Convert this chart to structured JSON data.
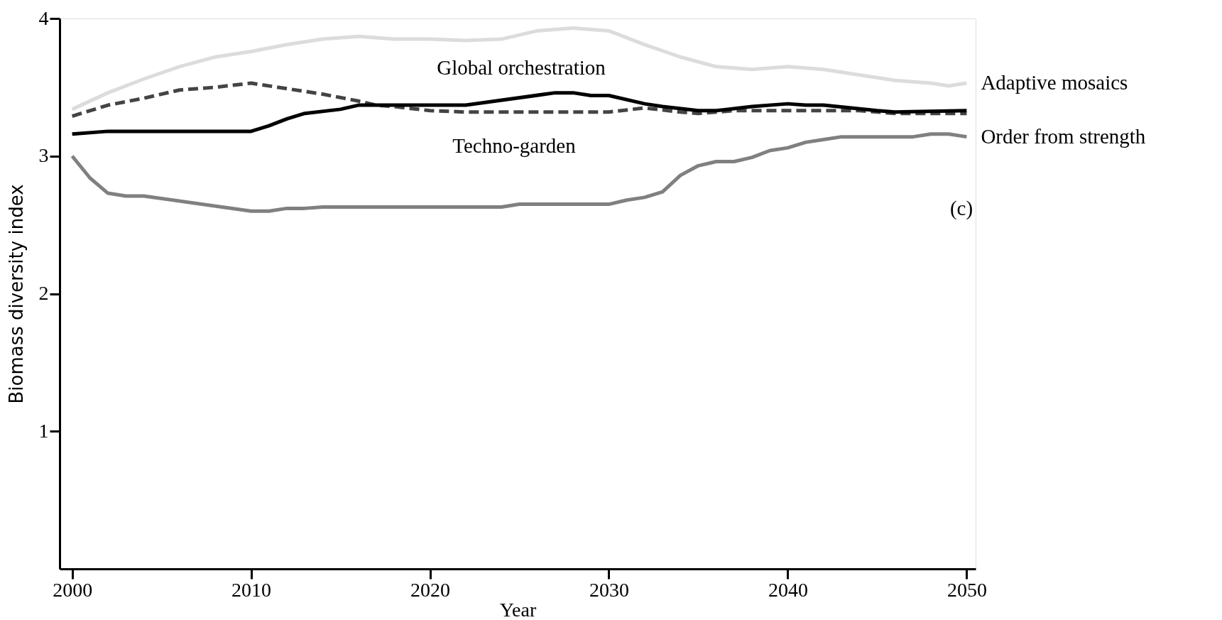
{
  "chart_data": {
    "type": "line",
    "xlabel": "Year",
    "ylabel": "Biomass diversity index",
    "xlim": [
      1999.3,
      2050.5
    ],
    "xticks": [
      2000,
      2010,
      2020,
      2030,
      2040,
      2050
    ],
    "ylim": [
      0,
      4
    ],
    "yticks": [
      1,
      2,
      3,
      4
    ],
    "grid": false,
    "line_style": "solid",
    "marker": "none",
    "series": [
      {
        "name": "Adaptive mosaics",
        "color": "#dcdcdc",
        "x": [
          2000,
          2002,
          2004,
          2006,
          2008,
          2010,
          2012,
          2014,
          2016,
          2018,
          2020,
          2022,
          2024,
          2026,
          2028,
          2030,
          2032,
          2034,
          2036,
          2038,
          2040,
          2042,
          2044,
          2046,
          2048,
          2049,
          2050
        ],
        "values": [
          3.34,
          3.46,
          3.56,
          3.65,
          3.72,
          3.76,
          3.81,
          3.85,
          3.87,
          3.85,
          3.85,
          3.84,
          3.85,
          3.91,
          3.93,
          3.91,
          3.81,
          3.72,
          3.65,
          3.63,
          3.65,
          3.63,
          3.59,
          3.55,
          3.53,
          3.51,
          3.53
        ]
      },
      {
        "color": "#444444",
        "line_style": "dashed",
        "x": [
          2000,
          2002,
          2004,
          2006,
          2008,
          2010,
          2012,
          2014,
          2016,
          2017,
          2018,
          2020,
          2022,
          2030,
          2032,
          2034,
          2035,
          2037,
          2044,
          2046,
          2050
        ],
        "values": [
          3.29,
          3.37,
          3.42,
          3.48,
          3.5,
          3.53,
          3.49,
          3.45,
          3.4,
          3.37,
          3.36,
          3.33,
          3.32,
          3.32,
          3.35,
          3.32,
          3.31,
          3.33,
          3.33,
          3.31,
          3.31
        ]
      },
      {
        "color": "#000000",
        "x": [
          2000,
          2002,
          2010,
          2011,
          2012,
          2013,
          2015,
          2016,
          2022,
          2027,
          2028,
          2029,
          2030,
          2032,
          2033,
          2035,
          2036,
          2038,
          2040,
          2041,
          2042,
          2045,
          2046,
          2050
        ],
        "values": [
          3.16,
          3.18,
          3.18,
          3.22,
          3.27,
          3.31,
          3.34,
          3.37,
          3.37,
          3.46,
          3.46,
          3.44,
          3.44,
          3.38,
          3.36,
          3.33,
          3.33,
          3.36,
          3.38,
          3.37,
          3.37,
          3.33,
          3.32,
          3.33
        ]
      },
      {
        "name": "Order from strength",
        "color": "#808080",
        "x": [
          2000,
          2001,
          2002,
          2003,
          2004,
          2010,
          2011,
          2012,
          2013,
          2014,
          2024,
          2025,
          2030,
          2031,
          2032,
          2033,
          2034,
          2035,
          2036,
          2037,
          2038,
          2039,
          2040,
          2041,
          2042,
          2043,
          2047,
          2048,
          2049,
          2050
        ],
        "values": [
          3.0,
          2.84,
          2.73,
          2.71,
          2.71,
          2.6,
          2.6,
          2.62,
          2.62,
          2.63,
          2.63,
          2.65,
          2.65,
          2.68,
          2.7,
          2.74,
          2.86,
          2.93,
          2.96,
          2.96,
          2.99,
          3.04,
          3.06,
          3.1,
          3.12,
          3.14,
          3.14,
          3.16,
          3.16,
          3.14
        ]
      }
    ],
    "annotations": [
      "Global orchestration",
      "Techno-garden",
      "(c)"
    ]
  }
}
